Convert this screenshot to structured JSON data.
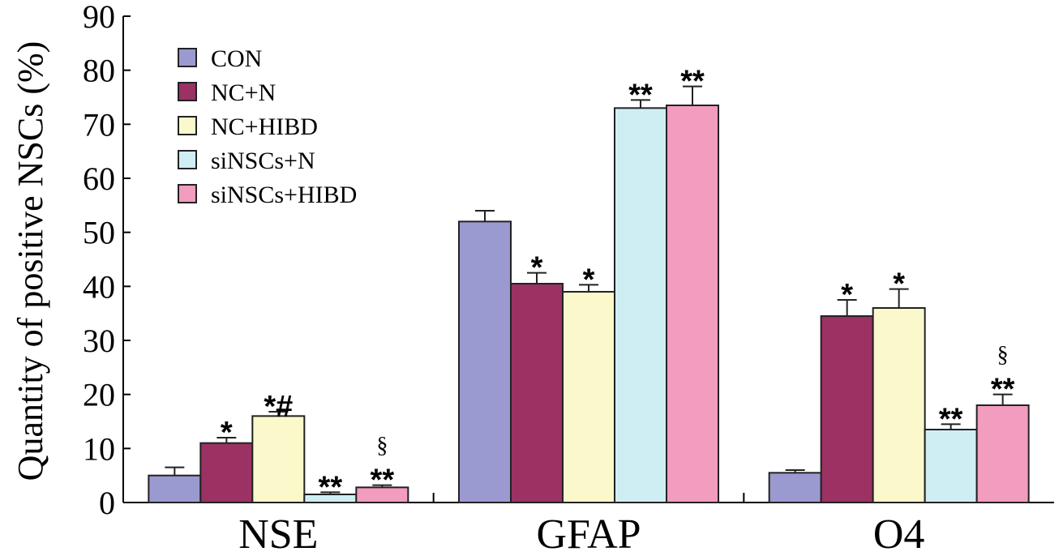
{
  "chart_data": {
    "type": "bar",
    "title": "",
    "xlabel": "",
    "ylabel": "Quantity of positive  NSCs (%)",
    "ylim": [
      0,
      90
    ],
    "yticks": [
      0,
      10,
      20,
      30,
      40,
      50,
      60,
      70,
      80,
      90
    ],
    "categories": [
      "NSE",
      "GFAP",
      "O4"
    ],
    "legend_position": "top-left",
    "grid": false,
    "series": [
      {
        "name": "CON",
        "color": "#9b9ad0",
        "values": [
          5.0,
          52.0,
          5.5
        ],
        "errors": [
          1.5,
          2.0,
          0.5
        ],
        "annotations": [
          "",
          "",
          ""
        ]
      },
      {
        "name": "NC+N",
        "color": "#9b3263",
        "values": [
          11.0,
          40.5,
          34.5
        ],
        "errors": [
          1.0,
          2.0,
          3.0
        ],
        "annotations": [
          "*",
          "*",
          "*"
        ]
      },
      {
        "name": "NC+HIBD",
        "color": "#fbf9cb",
        "values": [
          16.0,
          39.0,
          36.0
        ],
        "errors": [
          0.8,
          1.3,
          3.5
        ],
        "annotations": [
          "*#",
          "*",
          "*"
        ]
      },
      {
        "name": "siNSCs+N",
        "color": "#cfeef4",
        "values": [
          1.5,
          73.0,
          13.5
        ],
        "errors": [
          0.4,
          1.5,
          1.0
        ],
        "annotations": [
          "**",
          "**",
          "**"
        ]
      },
      {
        "name": "siNSCs+HIBD",
        "color": "#f29cbf",
        "values": [
          2.8,
          73.5,
          18.0
        ],
        "errors": [
          0.4,
          3.5,
          2.0
        ],
        "annotations": [
          "§\n**",
          "**",
          "§\n**"
        ]
      }
    ]
  }
}
